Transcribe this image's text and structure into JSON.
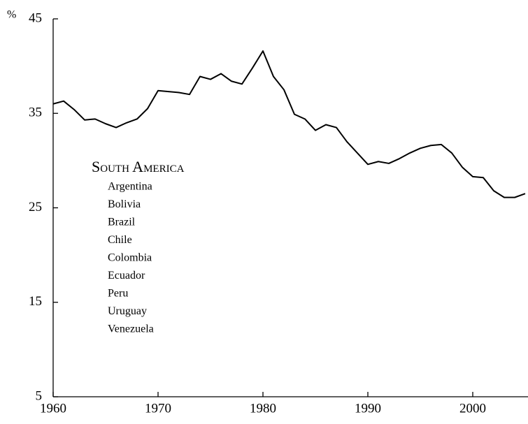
{
  "chart_data": {
    "type": "line",
    "y_unit_label": "%",
    "legend_title": "South America",
    "countries": [
      "Argentina",
      "Bolivia",
      "Brazil",
      "Chile",
      "Colombia",
      "Ecuador",
      "Peru",
      "Uruguay",
      "Venezuela"
    ],
    "x": [
      1960,
      1961,
      1962,
      1963,
      1964,
      1965,
      1966,
      1967,
      1968,
      1969,
      1970,
      1971,
      1972,
      1973,
      1974,
      1975,
      1976,
      1977,
      1978,
      1979,
      1980,
      1981,
      1982,
      1983,
      1984,
      1985,
      1986,
      1987,
      1988,
      1989,
      1990,
      1991,
      1992,
      1993,
      1994,
      1995,
      1996,
      1997,
      1998,
      1999,
      2000,
      2001,
      2002,
      2003,
      2004,
      2005
    ],
    "series": [
      {
        "color": "#000000",
        "values": [
          36.0,
          36.3,
          35.4,
          34.3,
          34.4,
          33.9,
          33.5,
          34.0,
          34.4,
          35.5,
          37.4,
          37.3,
          37.2,
          37.0,
          38.9,
          38.6,
          39.2,
          38.4,
          38.1,
          39.8,
          41.6,
          38.9,
          37.5,
          34.9,
          34.4,
          33.2,
          33.8,
          33.5,
          32.0,
          30.8,
          29.6,
          29.9,
          29.7,
          30.2,
          30.8,
          31.3,
          31.6,
          31.7,
          30.8,
          29.3,
          28.3,
          28.2,
          26.8,
          26.1,
          26.1,
          26.5
        ]
      }
    ],
    "xlim": [
      1960,
      2005
    ],
    "xticks": [
      1960,
      1970,
      1980,
      1990,
      2000
    ],
    "ylim": [
      5,
      45
    ],
    "yticks": [
      5,
      15,
      25,
      35,
      45
    ]
  }
}
